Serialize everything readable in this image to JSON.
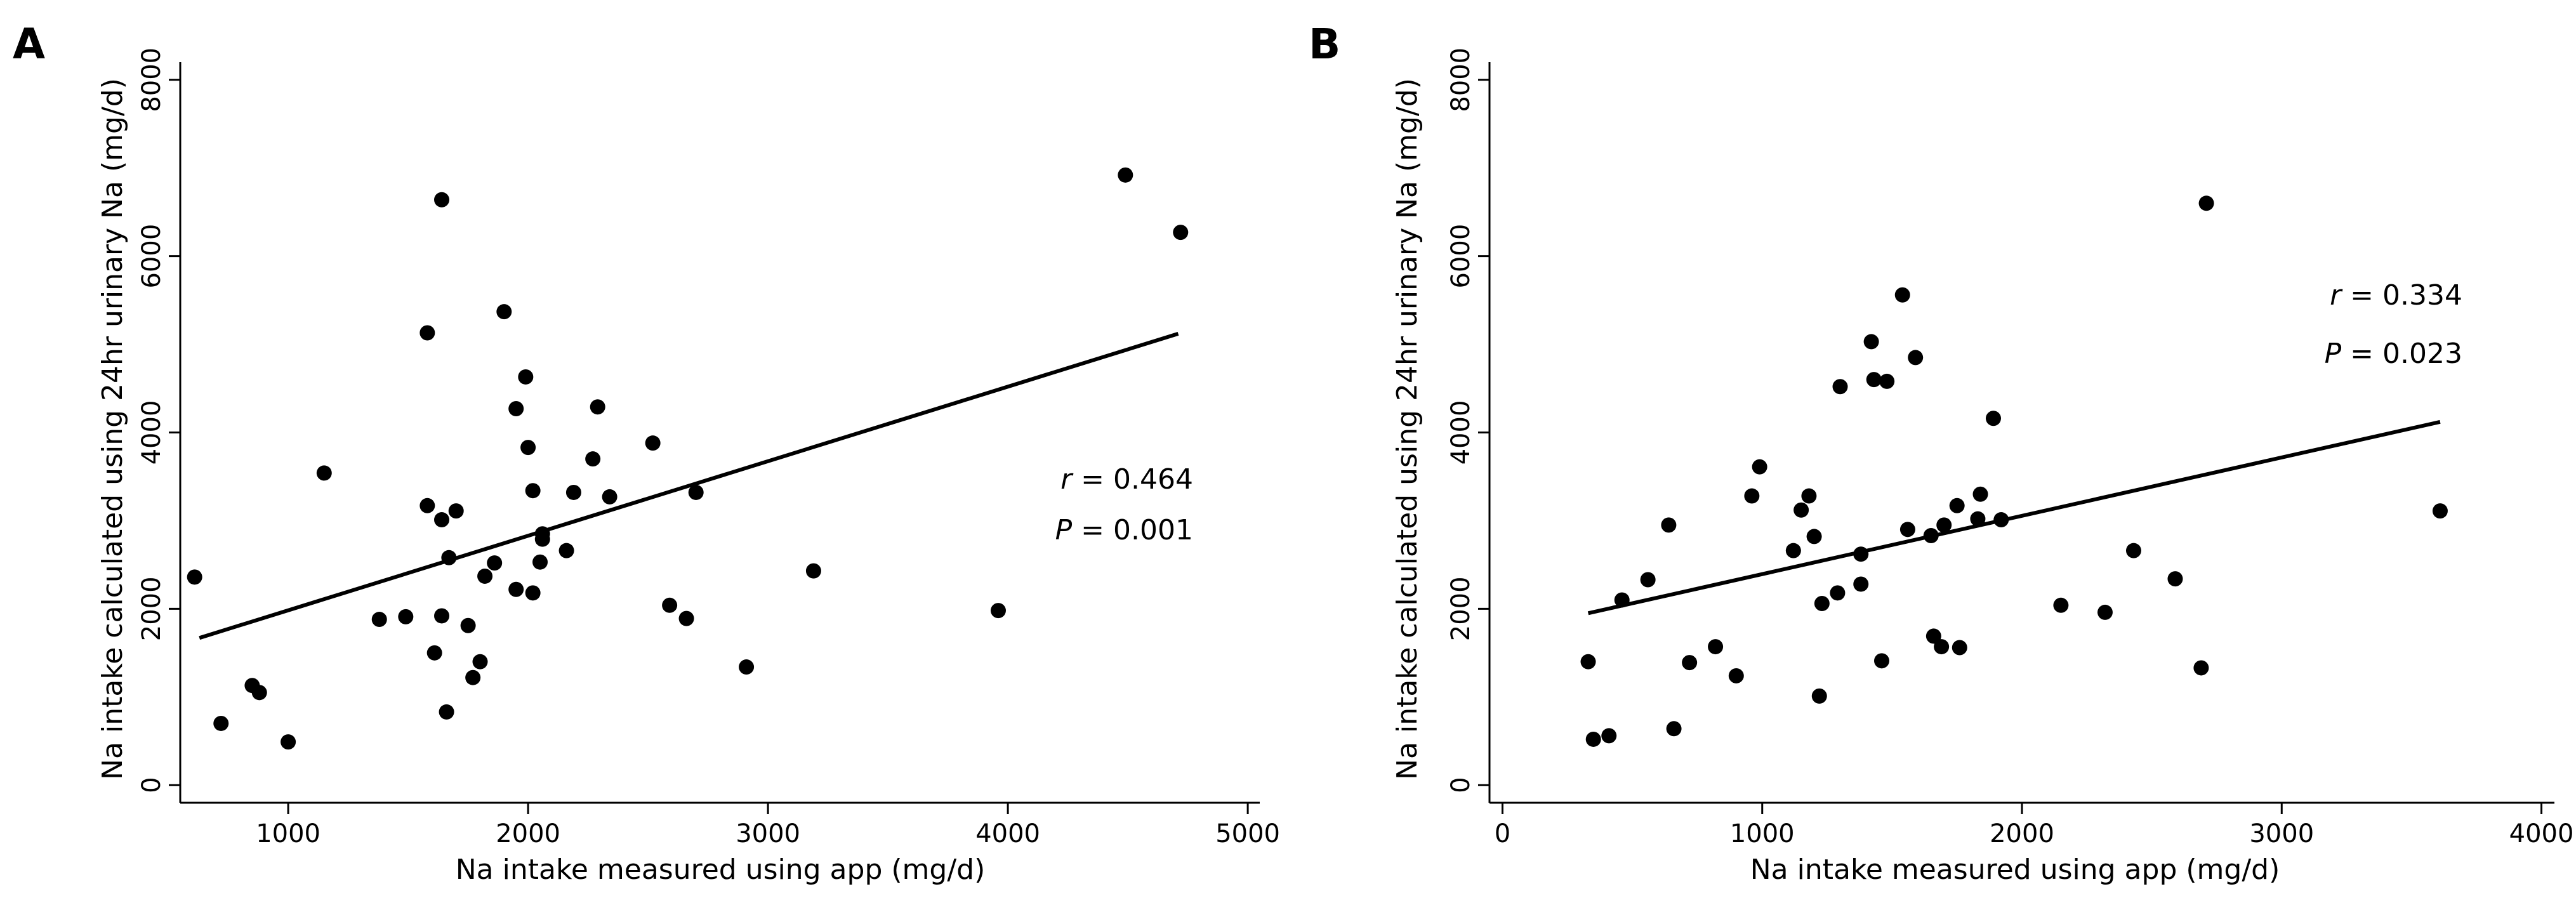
{
  "chart_data": [
    {
      "panel": "A",
      "type": "scatter",
      "xlabel": "Na intake measured using app (mg/d)",
      "ylabel": "Na intake calculated using 24hr urinary Na (mg/d)",
      "xlim": [
        550,
        5050
      ],
      "ylim": [
        -200,
        8200
      ],
      "xticks": [
        1000,
        2000,
        3000,
        4000,
        5000
      ],
      "yticks": [
        0,
        2000,
        4000,
        6000,
        8000
      ],
      "annotation": {
        "r_label": "r",
        "r_text": "= 0.464",
        "p_label": "P",
        "p_text": "= 0.001"
      },
      "fit_line": {
        "x": [
          630,
          4710
        ],
        "y": [
          1670,
          5120
        ]
      },
      "points": [
        [
          610,
          2360
        ],
        [
          720,
          700
        ],
        [
          850,
          1130
        ],
        [
          880,
          1050
        ],
        [
          1000,
          490
        ],
        [
          1150,
          3540
        ],
        [
          1380,
          1880
        ],
        [
          1490,
          1910
        ],
        [
          1580,
          5130
        ],
        [
          1580,
          3170
        ],
        [
          1610,
          1500
        ],
        [
          1640,
          6640
        ],
        [
          1640,
          1920
        ],
        [
          1640,
          3010
        ],
        [
          1660,
          830
        ],
        [
          1670,
          2580
        ],
        [
          1700,
          3110
        ],
        [
          1750,
          1810
        ],
        [
          1770,
          1220
        ],
        [
          1800,
          1400
        ],
        [
          1820,
          2370
        ],
        [
          1860,
          2520
        ],
        [
          1900,
          5370
        ],
        [
          1950,
          4270
        ],
        [
          1950,
          2220
        ],
        [
          1990,
          4630
        ],
        [
          2000,
          3830
        ],
        [
          2020,
          3340
        ],
        [
          2020,
          2180
        ],
        [
          2050,
          2530
        ],
        [
          2060,
          2790
        ],
        [
          2060,
          2850
        ],
        [
          2160,
          2660
        ],
        [
          2190,
          3320
        ],
        [
          2270,
          3700
        ],
        [
          2290,
          4290
        ],
        [
          2340,
          3270
        ],
        [
          2520,
          3880
        ],
        [
          2590,
          2040
        ],
        [
          2660,
          1890
        ],
        [
          2700,
          3320
        ],
        [
          2910,
          1340
        ],
        [
          3190,
          2430
        ],
        [
          3960,
          1980
        ],
        [
          4490,
          6920
        ],
        [
          4720,
          6270
        ]
      ]
    },
    {
      "panel": "B",
      "type": "scatter",
      "xlabel": "Na intake measured using app (mg/d)",
      "ylabel": "Na intake calculated using 24hr urinary Na (mg/d)",
      "xlim": [
        -50,
        4050
      ],
      "ylim": [
        -200,
        8200
      ],
      "xticks": [
        0,
        1000,
        2000,
        3000,
        4000
      ],
      "yticks": [
        0,
        2000,
        4000,
        6000,
        8000
      ],
      "annotation": {
        "r_label": "r",
        "r_text": "= 0.334",
        "p_label": "P",
        "p_text": "= 0.023"
      },
      "fit_line": {
        "x": [
          330,
          3610
        ],
        "y": [
          1950,
          4120
        ]
      },
      "points": [
        [
          330,
          1400
        ],
        [
          350,
          520
        ],
        [
          410,
          560
        ],
        [
          460,
          2100
        ],
        [
          560,
          2330
        ],
        [
          640,
          2950
        ],
        [
          660,
          640
        ],
        [
          720,
          1390
        ],
        [
          820,
          1570
        ],
        [
          900,
          1240
        ],
        [
          960,
          3280
        ],
        [
          990,
          3610
        ],
        [
          1120,
          2660
        ],
        [
          1150,
          3120
        ],
        [
          1180,
          3280
        ],
        [
          1200,
          2820
        ],
        [
          1220,
          1010
        ],
        [
          1230,
          2060
        ],
        [
          1290,
          2180
        ],
        [
          1300,
          4520
        ],
        [
          1380,
          2280
        ],
        [
          1380,
          2620
        ],
        [
          1420,
          5030
        ],
        [
          1430,
          4600
        ],
        [
          1460,
          1410
        ],
        [
          1480,
          4580
        ],
        [
          1540,
          5560
        ],
        [
          1560,
          2900
        ],
        [
          1590,
          4850
        ],
        [
          1650,
          2830
        ],
        [
          1660,
          1690
        ],
        [
          1690,
          1570
        ],
        [
          1700,
          2950
        ],
        [
          1750,
          3170
        ],
        [
          1760,
          1560
        ],
        [
          1830,
          3020
        ],
        [
          1840,
          3300
        ],
        [
          1890,
          4160
        ],
        [
          1920,
          3010
        ],
        [
          2150,
          2040
        ],
        [
          2320,
          1960
        ],
        [
          2430,
          2660
        ],
        [
          2590,
          2340
        ],
        [
          2690,
          1330
        ],
        [
          2710,
          6600
        ],
        [
          3610,
          3110
        ]
      ]
    }
  ]
}
